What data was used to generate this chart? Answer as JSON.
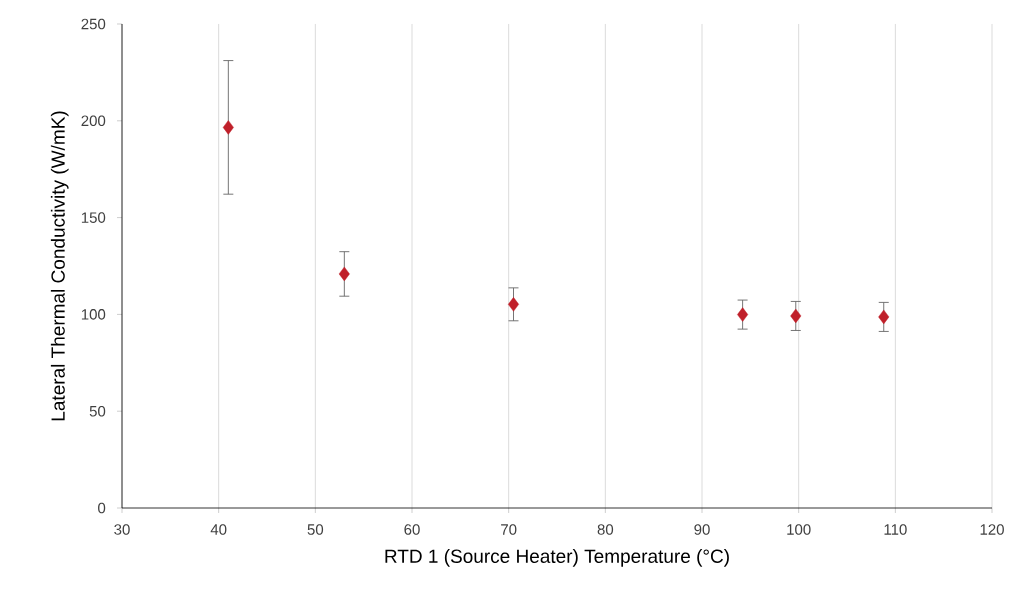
{
  "chart_data": {
    "type": "scatter",
    "xlabel": "RTD 1 (Source Heater) Temperature (°C)",
    "ylabel": "Lateral Thermal Conductivity (W/mK)",
    "x": [
      41,
      53,
      70.5,
      94.2,
      99.7,
      108.8
    ],
    "values": [
      196.6,
      120.9,
      105.2,
      99.9,
      99.2,
      98.7
    ],
    "errors": [
      34.5,
      11.5,
      8.5,
      7.5,
      7.5,
      7.5
    ],
    "color": "#c0202a",
    "marker": "diamond",
    "grid": "x",
    "xlim": [
      30,
      120
    ],
    "xticks": [
      30,
      40,
      50,
      60,
      70,
      80,
      90,
      100,
      110,
      120
    ],
    "ylim": [
      0,
      250
    ],
    "yticks": [
      0,
      50,
      100,
      150,
      200,
      250
    ]
  }
}
